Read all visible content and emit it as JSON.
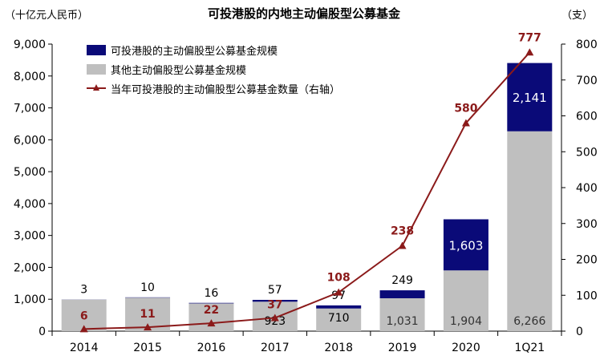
{
  "header": {
    "title": "可投港股的内地主动偏股型公募基金",
    "left_unit": "（十亿元人民币）",
    "right_unit": "（支）"
  },
  "legend": {
    "items": [
      {
        "label": "可投港股的主动偏股型公募基金规模",
        "kind": "bar",
        "color": "#0a0a78"
      },
      {
        "label": "其他主动偏股型公募基金规模",
        "kind": "bar",
        "color": "#bfbfbf"
      },
      {
        "label": "当年可投港股的主动偏股型公募基金数量（右轴）",
        "kind": "line",
        "color": "#8b1a1a"
      }
    ]
  },
  "chart_data": {
    "type": "bar",
    "stacked": true,
    "categories": [
      "2014",
      "2015",
      "2016",
      "2017",
      "2018",
      "2019",
      "2020",
      "1Q21"
    ],
    "series": [
      {
        "name": "其他主动偏股型公募基金规模",
        "axis": "left",
        "color": "#bfbfbf",
        "values": [
          990,
          1050,
          870,
          923,
          710,
          1031,
          1904,
          6266
        ],
        "labels": [
          "",
          "",
          "",
          "923",
          "710",
          "1,031",
          "1,904",
          "6,266"
        ]
      },
      {
        "name": "可投港股的主动偏股型公募基金规模",
        "axis": "left",
        "color": "#0a0a78",
        "values": [
          3,
          10,
          16,
          57,
          97,
          249,
          1603,
          2141
        ],
        "labels": [
          "3",
          "10",
          "16",
          "57",
          "97",
          "249",
          "1,603",
          "2,141"
        ]
      },
      {
        "name": "当年可投港股的主动偏股型公募基金数量（右轴）",
        "axis": "right",
        "type": "line",
        "color": "#8b1a1a",
        "values": [
          6,
          11,
          22,
          37,
          108,
          238,
          580,
          777
        ],
        "labels": [
          "6",
          "11",
          "22",
          "37",
          "108",
          "238",
          "580",
          "777"
        ]
      }
    ],
    "left_axis": {
      "min": 0,
      "max": 9000,
      "step": 1000,
      "tick_labels": [
        "0",
        "1,000",
        "2,000",
        "3,000",
        "4,000",
        "5,000",
        "6,000",
        "7,000",
        "8,000",
        "9,000"
      ]
    },
    "right_axis": {
      "min": 0,
      "max": 800,
      "step": 100,
      "tick_labels": [
        "0",
        "100",
        "200",
        "300",
        "400",
        "500",
        "600",
        "700",
        "800"
      ]
    },
    "grid": false
  }
}
